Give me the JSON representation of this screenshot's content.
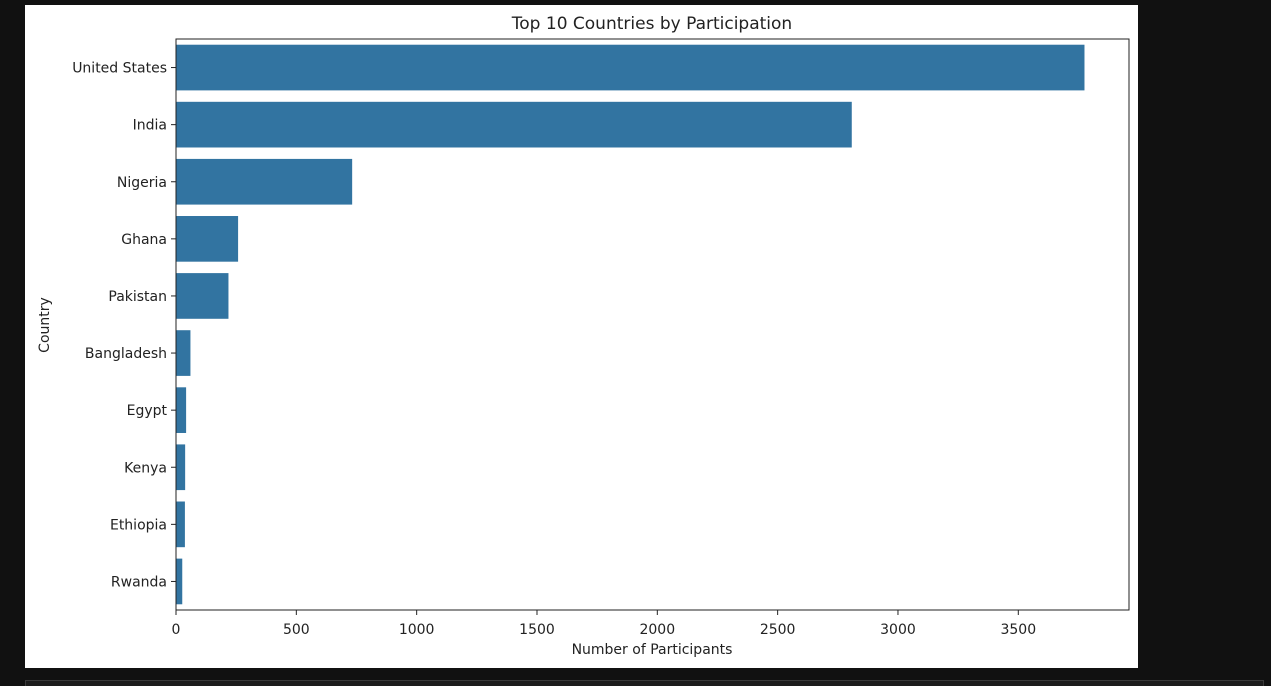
{
  "chart_data": {
    "type": "bar",
    "orientation": "horizontal",
    "title": "Top 10 Countries by Participation",
    "xlabel": "Number of Participants",
    "ylabel": "Country",
    "categories": [
      "United States",
      "India",
      "Nigeria",
      "Ghana",
      "Pakistan",
      "Bangladesh",
      "Egypt",
      "Kenya",
      "Ethiopia",
      "Rwanda"
    ],
    "values": [
      3775,
      2808,
      732,
      258,
      218,
      60,
      42,
      38,
      37,
      26
    ],
    "xlim": [
      0,
      3960
    ],
    "xticks": [
      0,
      500,
      1000,
      1500,
      2000,
      2500,
      3000,
      3500
    ],
    "grid": false,
    "bar_color": "#3274a1"
  }
}
